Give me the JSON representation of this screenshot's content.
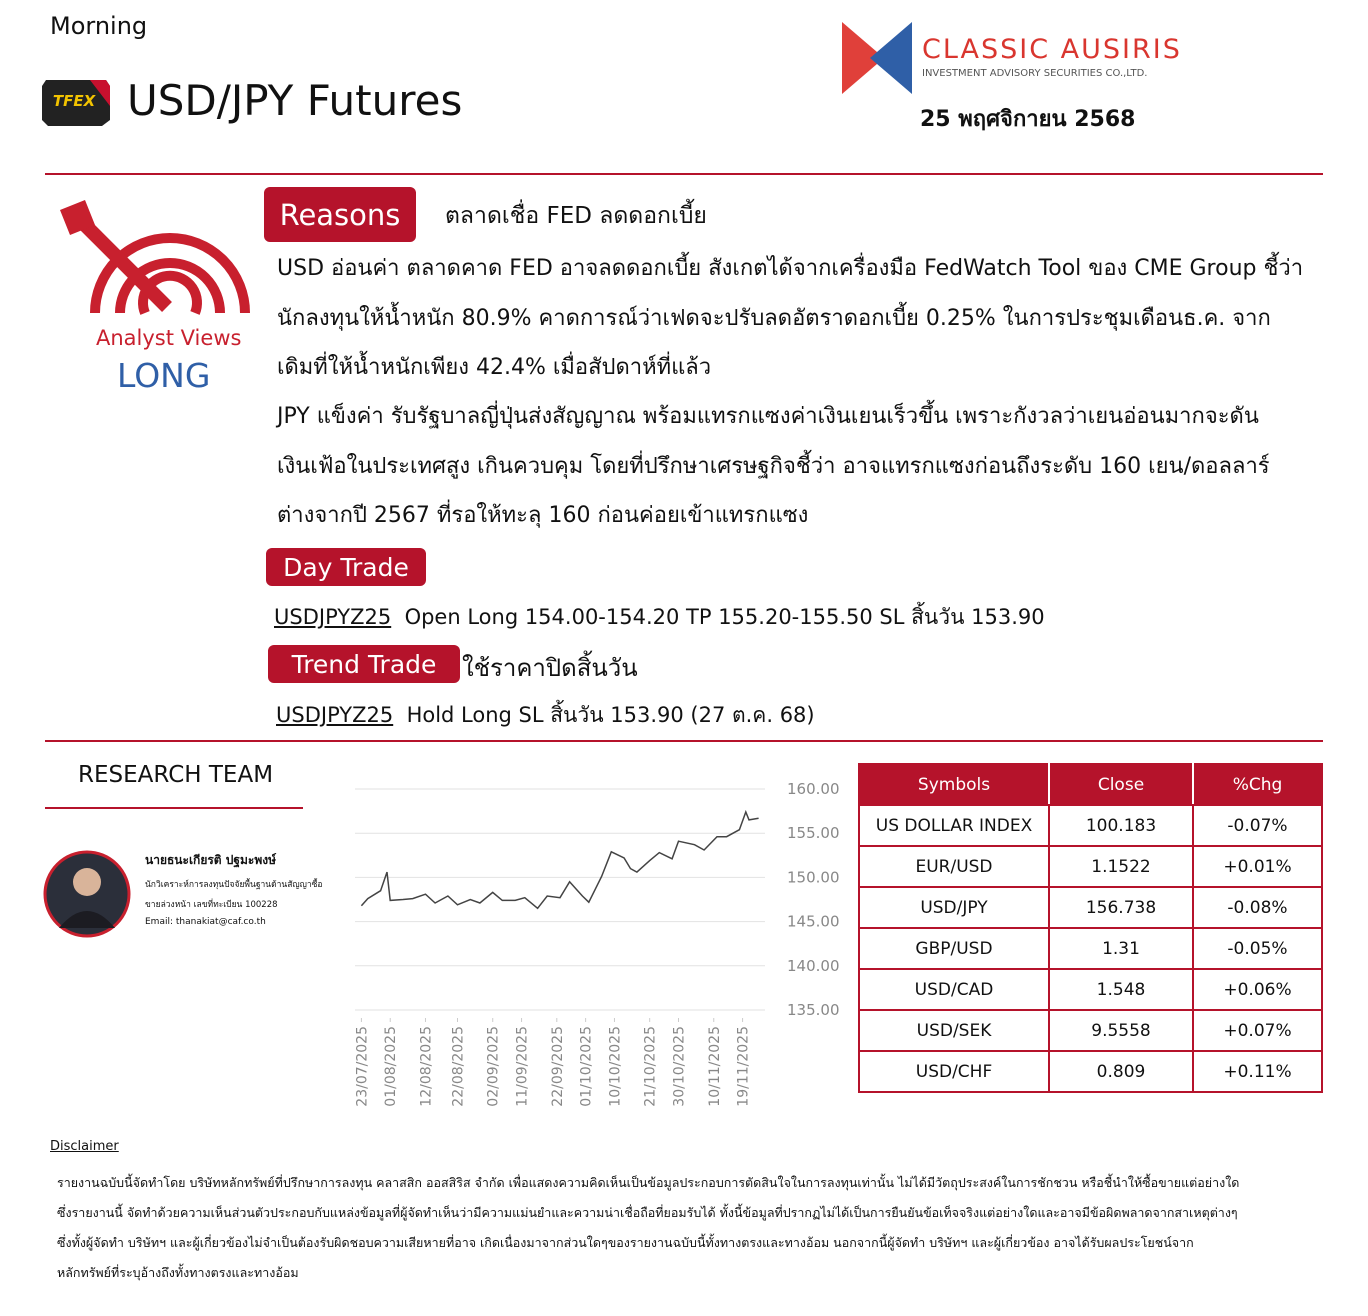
{
  "header": {
    "session": "Morning",
    "logo_text": "TFEX",
    "title": "USD/JPY Futures",
    "company": "CLASSIC AUSIRIS",
    "company_sub": "INVESTMENT ADVISORY SECURITIES CO.,LTD.",
    "date": "25 พฤศจิกายน 2568"
  },
  "analyst": {
    "label": "Analyst Views",
    "view": "LONG"
  },
  "reasons": {
    "label": "Reasons",
    "headline": "ตลาดเชื่อ FED ลดดอกเบี้ย",
    "paragraphs": [
      "USD อ่อนค่า ตลาดคาด FED อาจลดดอกเบี้ย สังเกตได้จากเครื่องมือ FedWatch Tool ของ CME Group ชี้ว่า นักลงทุนให้น้ำหนัก 80.9% คาดการณ์ว่าเฟดจะปรับลดอัตราดอกเบี้ย 0.25% ในการประชุมเดือนธ.ค. จากเดิมที่ให้น้ำหนักเพียง 42.4% เมื่อสัปดาห์ที่แล้ว",
      "JPY แข็งค่า รับรัฐบาลญี่ปุ่นส่งสัญญาณ พร้อมแทรกแซงค่าเงินเยนเร็วขึ้น เพราะกังวลว่าเยนอ่อนมากจะดัน เงินเฟ้อในประเทศสูง เกินควบคุม โดยที่ปรึกษาเศรษฐกิจชี้ว่า อาจแทรกแซงก่อนถึงระดับ 160 เยน/ดอลลาร์ ต่างจากปี 2567 ที่รอให้ทะลุ 160 ก่อนค่อยเข้าแทรกแซง"
    ]
  },
  "day_trade": {
    "label": "Day Trade",
    "symbol": "USDJPYZ25",
    "text": "Open Long 154.00-154.20  TP 155.20-155.50  SL สิ้นวัน 153.90"
  },
  "trend_trade": {
    "label": "Trend Trade",
    "note": "ใช้ราคาปิดสิ้นวัน",
    "symbol": "USDJPYZ25",
    "text": "Hold Long SL สิ้นวัน 153.90 (27 ต.ค. 68)"
  },
  "research_team": {
    "title": "RESEARCH TEAM",
    "name": "นายธนะเกียรติ ปฐมะพงษ์",
    "role_lines": [
      "นักวิเคราะห์การลงทุนปัจจัยพื้นฐานด้านสัญญาซื้อ",
      "ขายล่วงหน้า เลขที่ทะเบียน 100228"
    ],
    "email": "Email: thanakiat@caf.co.th"
  },
  "chart_data": {
    "type": "line",
    "color": "#444444",
    "grid": true,
    "x": [
      "2025-07-23",
      "2025-07-25",
      "2025-07-29",
      "2025-07-31",
      "2025-08-01",
      "2025-08-05",
      "2025-08-08",
      "2025-08-12",
      "2025-08-15",
      "2025-08-19",
      "2025-08-22",
      "2025-08-26",
      "2025-08-29",
      "2025-09-02",
      "2025-09-05",
      "2025-09-09",
      "2025-09-12",
      "2025-09-16",
      "2025-09-19",
      "2025-09-23",
      "2025-09-26",
      "2025-09-30",
      "2025-10-02",
      "2025-10-06",
      "2025-10-09",
      "2025-10-13",
      "2025-10-15",
      "2025-10-17",
      "2025-10-21",
      "2025-10-24",
      "2025-10-28",
      "2025-10-30",
      "2025-11-04",
      "2025-11-07",
      "2025-11-11",
      "2025-11-14",
      "2025-11-18",
      "2025-11-20",
      "2025-11-21",
      "2025-11-24"
    ],
    "values": [
      146.8,
      147.6,
      148.5,
      150.6,
      147.4,
      147.5,
      147.6,
      148.1,
      147.1,
      147.9,
      146.9,
      147.5,
      147.1,
      148.3,
      147.4,
      147.4,
      147.7,
      146.5,
      147.9,
      147.7,
      149.5,
      147.9,
      147.2,
      150.1,
      152.9,
      152.2,
      151.0,
      150.6,
      151.9,
      152.8,
      152.1,
      154.1,
      153.7,
      153.1,
      154.6,
      154.6,
      155.4,
      157.4,
      156.5,
      156.7
    ],
    "xlim": [
      "2025-07-21",
      "2025-11-26"
    ],
    "xticks": [
      {
        "value": "2025-07-23",
        "label": "23/07/2025"
      },
      {
        "value": "2025-08-01",
        "label": "01/08/2025"
      },
      {
        "value": "2025-08-12",
        "label": "12/08/2025"
      },
      {
        "value": "2025-08-22",
        "label": "22/08/2025"
      },
      {
        "value": "2025-09-02",
        "label": "02/09/2025"
      },
      {
        "value": "2025-09-11",
        "label": "11/09/2025"
      },
      {
        "value": "2025-09-22",
        "label": "22/09/2025"
      },
      {
        "value": "2025-10-01",
        "label": "01/10/2025"
      },
      {
        "value": "2025-10-10",
        "label": "10/10/2025"
      },
      {
        "value": "2025-10-21",
        "label": "21/10/2025"
      },
      {
        "value": "2025-10-30",
        "label": "30/10/2025"
      },
      {
        "value": "2025-11-10",
        "label": "10/11/2025"
      },
      {
        "value": "2025-11-19",
        "label": "19/11/2025"
      }
    ],
    "ylim": [
      135,
      160
    ],
    "yticks": [
      {
        "value": 135,
        "label": "135.00"
      },
      {
        "value": 140,
        "label": "140.00"
      },
      {
        "value": 145,
        "label": "145.00"
      },
      {
        "value": 150,
        "label": "150.00"
      },
      {
        "value": 155,
        "label": "155.00"
      },
      {
        "value": 160,
        "label": "160.00"
      }
    ]
  },
  "table": {
    "header": [
      "Symbols",
      "Close",
      "%Chg"
    ],
    "rows": [
      [
        "US DOLLAR INDEX",
        "100.183",
        "-0.07%"
      ],
      [
        "EUR/USD",
        "1.1522",
        "+0.01%"
      ],
      [
        "USD/JPY",
        "156.738",
        "-0.08%"
      ],
      [
        "GBP/USD",
        "1.31",
        "-0.05%"
      ],
      [
        "USD/CAD",
        "1.548",
        "+0.06%"
      ],
      [
        "USD/SEK",
        "9.5558",
        "+0.07%"
      ],
      [
        "USD/CHF",
        "0.809",
        "+0.11%"
      ]
    ]
  },
  "disclaimer": {
    "title": "Disclaimer",
    "lines": [
      "รายงานฉบับนี้จัดทำโดย บริษัทหลักทรัพย์ที่ปรึกษาการลงทุน คลาสสิก ออสสิริส จำกัด เพื่อแสดงความคิดเห็นเป็นข้อมูลประกอบการตัดสินใจในการลงทุนเท่านั้น  ไม่ได้มีวัตถุประสงค์ในการชักชวน  หรือชี้นำให้ซื้อขายแต่อย่างใด",
      "ซึ่งรายงานนี้ จัดทำด้วยความเห็นส่วนตัวประกอบกับแหล่งข้อมูลที่ผู้จัดทำเห็นว่ามีความแม่นยำและความน่าเชื่อถือที่ยอมรับได้  ทั้งนี้ข้อมูลที่ปรากฏไม่ได้เป็นการยืนยันข้อเท็จจริงแต่อย่างใดและอาจมีข้อผิดพลาดจากสาเหตุต่างๆ",
      "ซึ่งทั้งผู้จัดทำ บริษัทฯ และผู้เกี่ยวข้องไม่จำเป็นต้องรับผิดชอบความเสียหายที่อาจ  เกิดเนื่องมาจากส่วนใดๆของรายงานฉบับนี้ทั้งทางตรงและทางอ้อม  นอกจากนี้ผู้จัดทำ บริษัทฯ และผู้เกี่ยวข้อง อาจได้รับผลประโยชน์จาก",
      "หลักทรัพย์ที่ระบุอ้างถึงทั้งทางตรงและทางอ้อม"
    ]
  }
}
